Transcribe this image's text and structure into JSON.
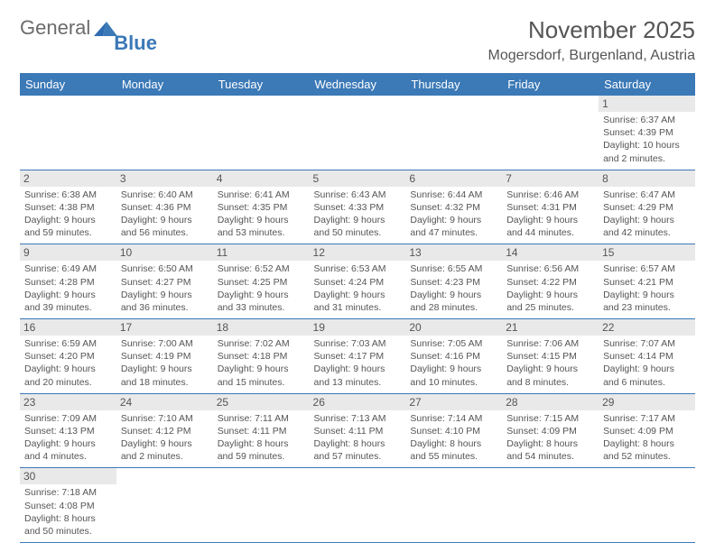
{
  "brand": {
    "word1": "General",
    "word2": "Blue"
  },
  "title": "November 2025",
  "location": "Mogersdorf, Burgenland, Austria",
  "colors": {
    "header_bg": "#3b79b7",
    "header_text": "#ffffff",
    "daynum_bg": "#e9e9e9",
    "rule": "#3b79b7",
    "text": "#555555",
    "page_bg": "#ffffff"
  },
  "typography": {
    "title_fontsize": 26,
    "location_fontsize": 16,
    "dayheader_fontsize": 13,
    "daynum_fontsize": 12,
    "cell_fontsize": 10.5
  },
  "day_headers": [
    "Sunday",
    "Monday",
    "Tuesday",
    "Wednesday",
    "Thursday",
    "Friday",
    "Saturday"
  ],
  "weeks": [
    [
      null,
      null,
      null,
      null,
      null,
      null,
      {
        "n": "1",
        "sunrise": "Sunrise: 6:37 AM",
        "sunset": "Sunset: 4:39 PM",
        "daylight": "Daylight: 10 hours and 2 minutes."
      }
    ],
    [
      {
        "n": "2",
        "sunrise": "Sunrise: 6:38 AM",
        "sunset": "Sunset: 4:38 PM",
        "daylight": "Daylight: 9 hours and 59 minutes."
      },
      {
        "n": "3",
        "sunrise": "Sunrise: 6:40 AM",
        "sunset": "Sunset: 4:36 PM",
        "daylight": "Daylight: 9 hours and 56 minutes."
      },
      {
        "n": "4",
        "sunrise": "Sunrise: 6:41 AM",
        "sunset": "Sunset: 4:35 PM",
        "daylight": "Daylight: 9 hours and 53 minutes."
      },
      {
        "n": "5",
        "sunrise": "Sunrise: 6:43 AM",
        "sunset": "Sunset: 4:33 PM",
        "daylight": "Daylight: 9 hours and 50 minutes."
      },
      {
        "n": "6",
        "sunrise": "Sunrise: 6:44 AM",
        "sunset": "Sunset: 4:32 PM",
        "daylight": "Daylight: 9 hours and 47 minutes."
      },
      {
        "n": "7",
        "sunrise": "Sunrise: 6:46 AM",
        "sunset": "Sunset: 4:31 PM",
        "daylight": "Daylight: 9 hours and 44 minutes."
      },
      {
        "n": "8",
        "sunrise": "Sunrise: 6:47 AM",
        "sunset": "Sunset: 4:29 PM",
        "daylight": "Daylight: 9 hours and 42 minutes."
      }
    ],
    [
      {
        "n": "9",
        "sunrise": "Sunrise: 6:49 AM",
        "sunset": "Sunset: 4:28 PM",
        "daylight": "Daylight: 9 hours and 39 minutes."
      },
      {
        "n": "10",
        "sunrise": "Sunrise: 6:50 AM",
        "sunset": "Sunset: 4:27 PM",
        "daylight": "Daylight: 9 hours and 36 minutes."
      },
      {
        "n": "11",
        "sunrise": "Sunrise: 6:52 AM",
        "sunset": "Sunset: 4:25 PM",
        "daylight": "Daylight: 9 hours and 33 minutes."
      },
      {
        "n": "12",
        "sunrise": "Sunrise: 6:53 AM",
        "sunset": "Sunset: 4:24 PM",
        "daylight": "Daylight: 9 hours and 31 minutes."
      },
      {
        "n": "13",
        "sunrise": "Sunrise: 6:55 AM",
        "sunset": "Sunset: 4:23 PM",
        "daylight": "Daylight: 9 hours and 28 minutes."
      },
      {
        "n": "14",
        "sunrise": "Sunrise: 6:56 AM",
        "sunset": "Sunset: 4:22 PM",
        "daylight": "Daylight: 9 hours and 25 minutes."
      },
      {
        "n": "15",
        "sunrise": "Sunrise: 6:57 AM",
        "sunset": "Sunset: 4:21 PM",
        "daylight": "Daylight: 9 hours and 23 minutes."
      }
    ],
    [
      {
        "n": "16",
        "sunrise": "Sunrise: 6:59 AM",
        "sunset": "Sunset: 4:20 PM",
        "daylight": "Daylight: 9 hours and 20 minutes."
      },
      {
        "n": "17",
        "sunrise": "Sunrise: 7:00 AM",
        "sunset": "Sunset: 4:19 PM",
        "daylight": "Daylight: 9 hours and 18 minutes."
      },
      {
        "n": "18",
        "sunrise": "Sunrise: 7:02 AM",
        "sunset": "Sunset: 4:18 PM",
        "daylight": "Daylight: 9 hours and 15 minutes."
      },
      {
        "n": "19",
        "sunrise": "Sunrise: 7:03 AM",
        "sunset": "Sunset: 4:17 PM",
        "daylight": "Daylight: 9 hours and 13 minutes."
      },
      {
        "n": "20",
        "sunrise": "Sunrise: 7:05 AM",
        "sunset": "Sunset: 4:16 PM",
        "daylight": "Daylight: 9 hours and 10 minutes."
      },
      {
        "n": "21",
        "sunrise": "Sunrise: 7:06 AM",
        "sunset": "Sunset: 4:15 PM",
        "daylight": "Daylight: 9 hours and 8 minutes."
      },
      {
        "n": "22",
        "sunrise": "Sunrise: 7:07 AM",
        "sunset": "Sunset: 4:14 PM",
        "daylight": "Daylight: 9 hours and 6 minutes."
      }
    ],
    [
      {
        "n": "23",
        "sunrise": "Sunrise: 7:09 AM",
        "sunset": "Sunset: 4:13 PM",
        "daylight": "Daylight: 9 hours and 4 minutes."
      },
      {
        "n": "24",
        "sunrise": "Sunrise: 7:10 AM",
        "sunset": "Sunset: 4:12 PM",
        "daylight": "Daylight: 9 hours and 2 minutes."
      },
      {
        "n": "25",
        "sunrise": "Sunrise: 7:11 AM",
        "sunset": "Sunset: 4:11 PM",
        "daylight": "Daylight: 8 hours and 59 minutes."
      },
      {
        "n": "26",
        "sunrise": "Sunrise: 7:13 AM",
        "sunset": "Sunset: 4:11 PM",
        "daylight": "Daylight: 8 hours and 57 minutes."
      },
      {
        "n": "27",
        "sunrise": "Sunrise: 7:14 AM",
        "sunset": "Sunset: 4:10 PM",
        "daylight": "Daylight: 8 hours and 55 minutes."
      },
      {
        "n": "28",
        "sunrise": "Sunrise: 7:15 AM",
        "sunset": "Sunset: 4:09 PM",
        "daylight": "Daylight: 8 hours and 54 minutes."
      },
      {
        "n": "29",
        "sunrise": "Sunrise: 7:17 AM",
        "sunset": "Sunset: 4:09 PM",
        "daylight": "Daylight: 8 hours and 52 minutes."
      }
    ],
    [
      {
        "n": "30",
        "sunrise": "Sunrise: 7:18 AM",
        "sunset": "Sunset: 4:08 PM",
        "daylight": "Daylight: 8 hours and 50 minutes."
      },
      null,
      null,
      null,
      null,
      null,
      null
    ]
  ]
}
